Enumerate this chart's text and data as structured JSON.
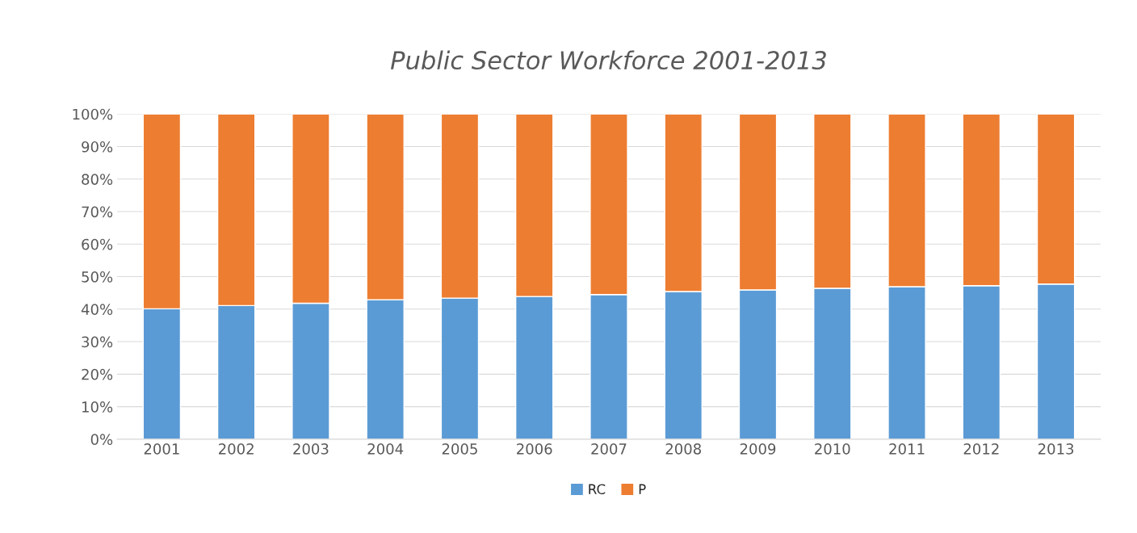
{
  "chart_data": {
    "type": "bar",
    "title": "Public Sector Workforce 2001-2013",
    "stacked": true,
    "categories": [
      "2001",
      "2002",
      "2003",
      "2004",
      "2005",
      "2006",
      "2007",
      "2008",
      "2009",
      "2010",
      "2011",
      "2012",
      "2013"
    ],
    "series": [
      {
        "name": "RC",
        "color": "#5b9bd5",
        "values": [
          40.1,
          41.1,
          41.8,
          42.9,
          43.4,
          43.9,
          44.5,
          45.4,
          45.9,
          46.4,
          46.9,
          47.2,
          47.7
        ]
      },
      {
        "name": "P",
        "color": "#ed7d31",
        "values": [
          59.9,
          58.9,
          58.2,
          57.1,
          56.6,
          56.1,
          55.5,
          54.6,
          54.1,
          53.6,
          53.1,
          52.8,
          52.3
        ]
      }
    ],
    "ylim": [
      0,
      100
    ],
    "yticks": [
      {
        "value": 0,
        "label": "0%"
      },
      {
        "value": 10,
        "label": "10%"
      },
      {
        "value": 20,
        "label": "20%"
      },
      {
        "value": 30,
        "label": "30%"
      },
      {
        "value": 40,
        "label": "40%"
      },
      {
        "value": 50,
        "label": "50%"
      },
      {
        "value": 60,
        "label": "60%"
      },
      {
        "value": 70,
        "label": "70%"
      },
      {
        "value": 80,
        "label": "80%"
      },
      {
        "value": 90,
        "label": "90%"
      },
      {
        "value": 100,
        "label": "100%"
      }
    ],
    "grid": "y",
    "legend": "bottom"
  }
}
